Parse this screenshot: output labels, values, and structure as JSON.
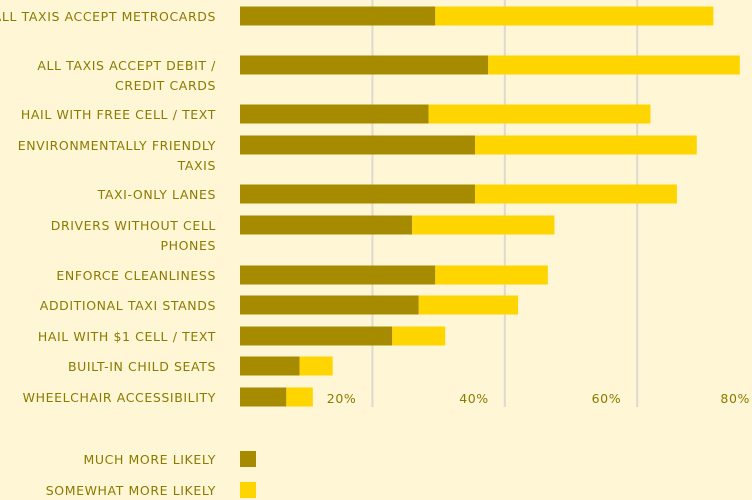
{
  "chart_data": {
    "type": "bar",
    "orientation": "horizontal",
    "stacked": true,
    "categories": [
      [
        "ALL TAXIS ACCEPT METROCARDS"
      ],
      [
        "ALL TAXIS ACCEPT DEBIT /",
        "CREDIT CARDS"
      ],
      [
        "HAIL WITH FREE CELL / TEXT"
      ],
      [
        "ENVIRONMENTALLY FRIENDLY",
        "TAXIS"
      ],
      [
        "TAXI-ONLY LANES"
      ],
      [
        "DRIVERS WITHOUT CELL",
        "PHONES"
      ],
      [
        "ENFORCE CLEANLINESS"
      ],
      [
        "ADDITIONAL TAXI STANDS"
      ],
      [
        "HAIL WITH $1 CELL / TEXT"
      ],
      [
        "BUILT-IN CHILD SEATS"
      ],
      [
        "WHEELCHAIR ACCESSIBILITY"
      ]
    ],
    "series": [
      {
        "name": "MUCH MORE LIKELY",
        "color": "#A68A00",
        "values": [
          29.5,
          37.5,
          28.5,
          35.5,
          35.5,
          26,
          29.5,
          27,
          23,
          9,
          7
        ]
      },
      {
        "name": "SOMEWHAT MORE LIKELY",
        "color": "#FFD500",
        "values": [
          42,
          38,
          33.5,
          33.5,
          30.5,
          21.5,
          17,
          15,
          8,
          5,
          4
        ]
      }
    ],
    "xlim": [
      0,
      80
    ],
    "xticks": [
      {
        "value": 20,
        "label": "20%"
      },
      {
        "value": 40,
        "label": "40%"
      },
      {
        "value": 60,
        "label": "60%"
      },
      {
        "value": 80,
        "label": "80%"
      }
    ],
    "grid": true,
    "gridColor": "#DDDAD0",
    "labelColor": "#8A7A00",
    "legend": "bottom-left"
  }
}
